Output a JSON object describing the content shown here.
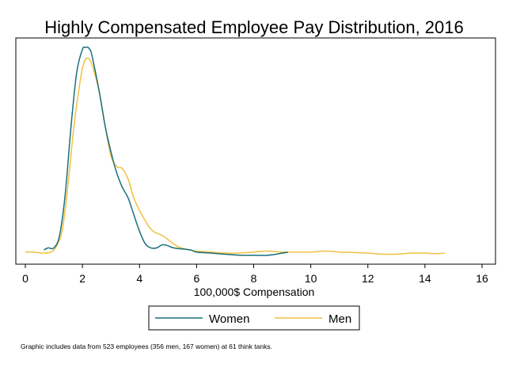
{
  "chart_data": {
    "type": "line",
    "title": "Highly Compensated Employee Pay Distribution, 2016",
    "xlabel": "100,000$ Compensation",
    "ylabel": "",
    "xlim": [
      0,
      16
    ],
    "ylim": [
      0,
      1
    ],
    "xticks": [
      "0",
      "2",
      "4",
      "6",
      "8",
      "10",
      "12",
      "14",
      "16"
    ],
    "legend_position": "bottom",
    "series": [
      {
        "name": "Women",
        "color": "#1a6f7c",
        "x": [
          0.65,
          0.8,
          1.0,
          1.2,
          1.4,
          1.6,
          1.8,
          2.0,
          2.1,
          2.2,
          2.3,
          2.4,
          2.6,
          2.8,
          3.0,
          3.2,
          3.4,
          3.6,
          3.8,
          4.0,
          4.2,
          4.4,
          4.6,
          4.8,
          5.0,
          5.2,
          5.5,
          5.8,
          6.0,
          6.5,
          7.0,
          7.5,
          8.0,
          8.5,
          9.0,
          9.2
        ],
        "values": [
          0.03,
          0.04,
          0.04,
          0.1,
          0.3,
          0.62,
          0.88,
          0.99,
          1.0,
          1.0,
          0.98,
          0.92,
          0.78,
          0.62,
          0.5,
          0.4,
          0.33,
          0.28,
          0.2,
          0.12,
          0.06,
          0.04,
          0.04,
          0.055,
          0.05,
          0.04,
          0.035,
          0.03,
          0.02,
          0.015,
          0.01,
          0.005,
          0.005,
          0.005,
          0.015,
          0.02
        ]
      },
      {
        "name": "Men",
        "color": "#f2c040",
        "x": [
          0.0,
          0.3,
          0.6,
          0.9,
          1.1,
          1.3,
          1.5,
          1.7,
          1.9,
          2.0,
          2.1,
          2.2,
          2.3,
          2.4,
          2.6,
          2.8,
          3.0,
          3.2,
          3.4,
          3.6,
          3.8,
          4.0,
          4.2,
          4.4,
          4.6,
          4.8,
          5.0,
          5.3,
          5.6,
          6.0,
          6.5,
          7.0,
          7.5,
          8.0,
          8.5,
          9.0,
          9.5,
          10.0,
          10.5,
          11.0,
          11.5,
          12.0,
          12.5,
          13.0,
          13.5,
          14.0,
          14.3,
          14.7
        ],
        "values": [
          0.02,
          0.02,
          0.015,
          0.02,
          0.05,
          0.13,
          0.35,
          0.62,
          0.82,
          0.9,
          0.94,
          0.95,
          0.93,
          0.89,
          0.78,
          0.62,
          0.48,
          0.43,
          0.42,
          0.37,
          0.28,
          0.22,
          0.17,
          0.13,
          0.11,
          0.1,
          0.08,
          0.05,
          0.035,
          0.025,
          0.02,
          0.015,
          0.015,
          0.02,
          0.025,
          0.02,
          0.02,
          0.02,
          0.025,
          0.02,
          0.018,
          0.015,
          0.01,
          0.01,
          0.015,
          0.015,
          0.012,
          0.015
        ]
      }
    ]
  },
  "footnote": "Graphic includes data from 523 employees (356 men, 167 women) at 61 think tanks."
}
